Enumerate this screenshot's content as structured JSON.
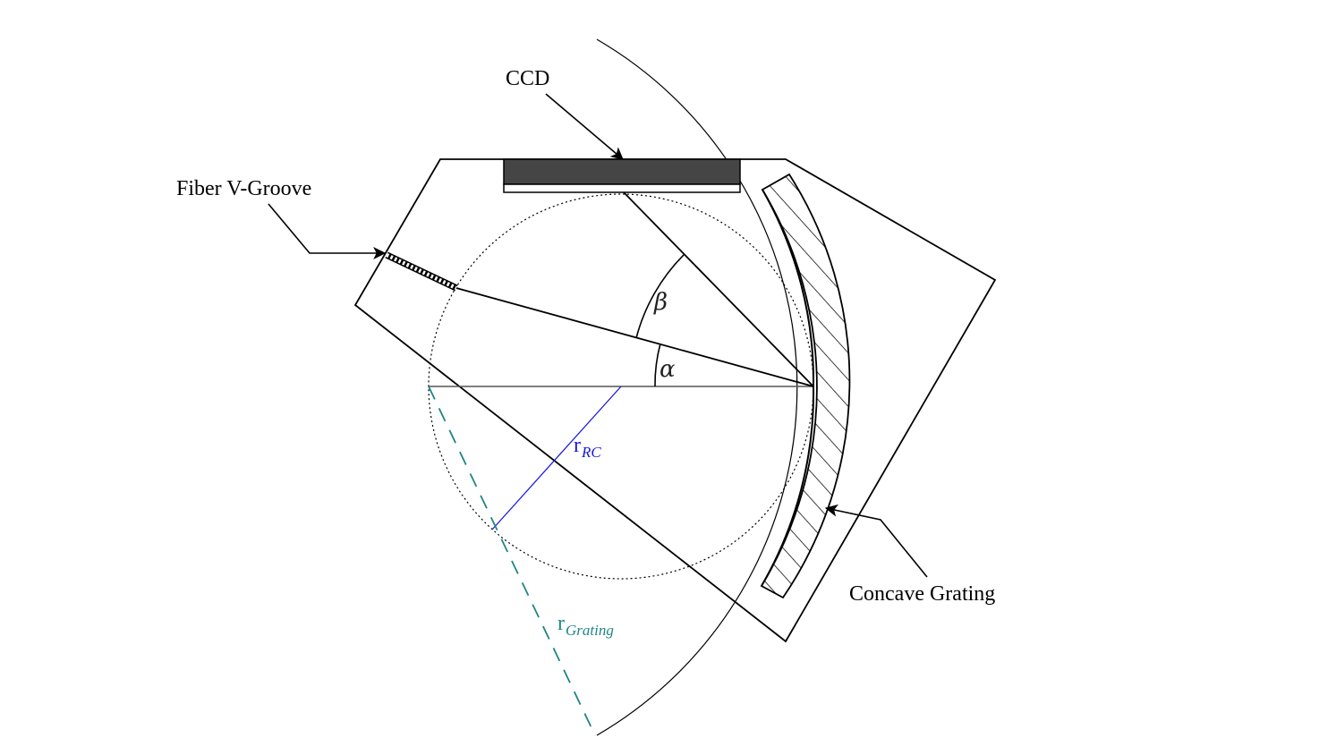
{
  "labels": {
    "ccd": "CCD",
    "fiber": "Fiber V-Groove",
    "grating": "Concave Grating",
    "alpha": "α",
    "beta": "β",
    "r_rc_main": "r",
    "r_rc_sub": "RC",
    "r_grating_main": "r",
    "r_grating_sub": "Grating"
  },
  "colors": {
    "line": "#000000",
    "ccd_fill": "#454545",
    "r_rc": "#1a1adb",
    "r_grating": "#1f8585"
  }
}
